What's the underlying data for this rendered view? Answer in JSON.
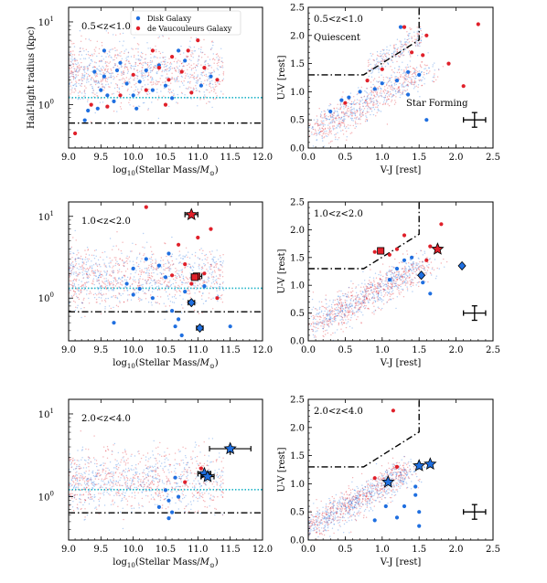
{
  "figure": {
    "legend": {
      "entries": [
        {
          "label": "Disk Galaxy",
          "color": "#1f6fe0"
        },
        {
          "label": "de Vaucouleurs Galaxy",
          "color": "#e0202a"
        }
      ],
      "placement": "top-center of first panel"
    },
    "colors": {
      "disk": "#1f6fe0",
      "devauc": "#e0202a",
      "dotted_line": "#22b5c8",
      "dashdot_line": "#000000"
    }
  },
  "chart_data": [
    {
      "id": "mass-size-1",
      "type": "scatter",
      "row": 0,
      "col": 0,
      "annotation": "0.5<z<1.0",
      "xlabel": "log10(Stellar Mass/M⊙)",
      "ylabel": "Half-light radius (kpc)",
      "yscale": "log",
      "xlim": [
        9.0,
        12.0
      ],
      "ylim": [
        0.3,
        15
      ],
      "xticks": [
        "9.0",
        "9.5",
        "10.0",
        "10.5",
        "11.0",
        "11.5",
        "12.0"
      ],
      "yticks": [
        {
          "v": 1,
          "label": "10^0"
        },
        {
          "v": 10,
          "label": "10^1"
        }
      ],
      "background_points": {
        "x_range": [
          9.0,
          11.5
        ],
        "description": "dense field of faint blue/red points"
      },
      "series": [
        {
          "name": "Disk Galaxy",
          "points": [
            [
              9.25,
              0.65
            ],
            [
              9.3,
              0.85
            ],
            [
              9.4,
              2.5
            ],
            [
              9.45,
              0.9
            ],
            [
              9.5,
              1.5
            ],
            [
              9.55,
              2.2
            ],
            [
              9.6,
              1.3
            ],
            [
              9.7,
              1.1
            ],
            [
              9.75,
              2.6
            ],
            [
              9.8,
              3.2
            ],
            [
              9.9,
              1.8
            ],
            [
              10.0,
              1.3
            ],
            [
              10.05,
              0.9
            ],
            [
              10.1,
              1.9
            ],
            [
              10.2,
              2.6
            ],
            [
              10.3,
              1.5
            ],
            [
              10.4,
              3.0
            ],
            [
              10.5,
              1.7
            ],
            [
              10.6,
              1.2
            ],
            [
              10.7,
              4.5
            ],
            [
              10.8,
              3.4
            ],
            [
              11.05,
              1.7
            ],
            [
              11.2,
              2.2
            ],
            [
              9.55,
              4.5
            ]
          ]
        },
        {
          "name": "de Vaucouleurs Galaxy",
          "points": [
            [
              9.1,
              0.45
            ],
            [
              9.35,
              1.0
            ],
            [
              9.6,
              0.95
            ],
            [
              9.8,
              1.3
            ],
            [
              10.0,
              2.3
            ],
            [
              10.2,
              1.5
            ],
            [
              10.4,
              2.8
            ],
            [
              10.5,
              1.0
            ],
            [
              10.55,
              2.0
            ],
            [
              10.6,
              3.8
            ],
            [
              10.75,
              2.5
            ],
            [
              10.85,
              4.5
            ],
            [
              10.9,
              1.4
            ],
            [
              11.0,
              6.0
            ],
            [
              11.1,
              2.8
            ],
            [
              11.3,
              2.0
            ],
            [
              10.3,
              4.5
            ]
          ]
        }
      ],
      "hlines": [
        {
          "y": 1.22,
          "style": "dotted",
          "color": "#22b5c8"
        },
        {
          "y": 0.6,
          "style": "dashdot",
          "color": "#000000"
        }
      ]
    },
    {
      "id": "uvj-1",
      "type": "scatter",
      "row": 0,
      "col": 1,
      "annotation": "0.5<z<1.0",
      "region_labels": [
        "Quiescent",
        "Star Forming"
      ],
      "xlabel": "V-J [rest]",
      "ylabel": "U-V [rest]",
      "xlim": [
        0.0,
        2.5
      ],
      "ylim": [
        0.0,
        2.5
      ],
      "xticks": [
        "0.0",
        "0.5",
        "1.0",
        "1.5",
        "2.0",
        "2.5"
      ],
      "yticks": [
        "0.0",
        "0.5",
        "1.0",
        "1.5",
        "2.0",
        "2.5"
      ],
      "background_points": {
        "description": "dense diagonal band of faint points"
      },
      "series": [
        {
          "name": "Disk Galaxy",
          "points": [
            [
              0.3,
              0.65
            ],
            [
              0.45,
              0.85
            ],
            [
              0.55,
              0.9
            ],
            [
              0.7,
              1.0
            ],
            [
              0.9,
              1.05
            ],
            [
              1.0,
              1.15
            ],
            [
              1.2,
              1.2
            ],
            [
              1.35,
              1.35
            ],
            [
              1.5,
              1.3
            ],
            [
              1.25,
              2.15
            ],
            [
              1.6,
              0.5
            ],
            [
              1.35,
              0.95
            ]
          ]
        },
        {
          "name": "de Vaucouleurs Galaxy",
          "points": [
            [
              0.5,
              0.8
            ],
            [
              0.8,
              1.2
            ],
            [
              1.0,
              1.4
            ],
            [
              1.3,
              2.15
            ],
            [
              1.55,
              1.65
            ],
            [
              1.6,
              2.0
            ],
            [
              1.9,
              1.5
            ],
            [
              2.1,
              1.1
            ],
            [
              2.3,
              2.2
            ],
            [
              1.4,
              1.7
            ]
          ]
        }
      ],
      "boundary": [
        [
          0.0,
          1.3
        ],
        [
          0.75,
          1.3
        ],
        [
          1.5,
          1.92
        ],
        [
          1.5,
          2.5
        ]
      ],
      "error_bar": {
        "x": 2.25,
        "y": 0.5,
        "dx": 0.15,
        "dy": 0.13
      }
    },
    {
      "id": "mass-size-2",
      "type": "scatter",
      "row": 1,
      "col": 0,
      "annotation": "1.0<z<2.0",
      "xlabel": "log10(Stellar Mass/M⊙)",
      "ylabel": "",
      "yscale": "log",
      "xlim": [
        9.0,
        12.0
      ],
      "ylim": [
        0.3,
        15
      ],
      "xticks": [
        "9.0",
        "9.5",
        "10.0",
        "10.5",
        "11.0",
        "11.5",
        "12.0"
      ],
      "yticks": [
        {
          "v": 1,
          "label": "10^0"
        },
        {
          "v": 10,
          "label": "10^1"
        }
      ],
      "series": [
        {
          "name": "Disk Galaxy",
          "points": [
            [
              9.7,
              0.5
            ],
            [
              9.9,
              1.5
            ],
            [
              10.0,
              2.3
            ],
            [
              10.1,
              1.3
            ],
            [
              10.2,
              3.0
            ],
            [
              10.3,
              1.0
            ],
            [
              10.4,
              2.5
            ],
            [
              10.5,
              1.8
            ],
            [
              10.6,
              0.7
            ],
            [
              10.65,
              0.45
            ],
            [
              10.7,
              0.55
            ],
            [
              10.75,
              0.35
            ],
            [
              10.8,
              1.2
            ],
            [
              11.1,
              1.4
            ],
            [
              11.5,
              0.45
            ],
            [
              10.55,
              3.5
            ],
            [
              10.0,
              1.1
            ]
          ]
        },
        {
          "name": "de Vaucouleurs Galaxy",
          "points": [
            [
              10.2,
              13.0
            ],
            [
              10.6,
              1.9
            ],
            [
              10.7,
              4.5
            ],
            [
              10.8,
              2.6
            ],
            [
              11.0,
              5.5
            ],
            [
              11.1,
              2.0
            ],
            [
              11.2,
              7.0
            ],
            [
              11.3,
              1.0
            ],
            [
              10.9,
              1.5
            ]
          ]
        }
      ],
      "highlighted": [
        {
          "marker": "star",
          "color": "#e0202a",
          "x": 10.9,
          "y": 10.5,
          "xerr": 0.1
        },
        {
          "marker": "square",
          "color": "#e0202a",
          "x": 10.98,
          "y": 1.85,
          "xerr": 0.08
        },
        {
          "marker": "square",
          "color": "#e0202a",
          "x": 10.95,
          "y": 1.8
        },
        {
          "marker": "diamond",
          "color": "#1f6fe0",
          "x": 10.9,
          "y": 0.88,
          "xerr": 0.05
        },
        {
          "marker": "diamond",
          "color": "#1f6fe0",
          "x": 11.03,
          "y": 0.43,
          "xerr": 0.05
        }
      ],
      "hlines": [
        {
          "y": 1.32,
          "style": "dotted",
          "color": "#22b5c8"
        },
        {
          "y": 0.68,
          "style": "dashdot",
          "color": "#000000"
        }
      ]
    },
    {
      "id": "uvj-2",
      "type": "scatter",
      "row": 1,
      "col": 1,
      "annotation": "1.0<z<2.0",
      "xlabel": "V-J [rest]",
      "ylabel": "U-V [rest]",
      "xlim": [
        0.0,
        2.5
      ],
      "ylim": [
        0.0,
        2.5
      ],
      "xticks": [
        "0.0",
        "0.5",
        "1.0",
        "1.5",
        "2.0",
        "2.5"
      ],
      "yticks": [
        "0.0",
        "0.5",
        "1.0",
        "1.5",
        "2.0",
        "2.5"
      ],
      "series": [
        {
          "name": "Disk Galaxy",
          "points": [
            [
              1.2,
              1.3
            ],
            [
              1.4,
              1.5
            ],
            [
              1.55,
              1.05
            ],
            [
              1.65,
              0.85
            ],
            [
              1.3,
              1.45
            ],
            [
              1.1,
              1.1
            ]
          ]
        },
        {
          "name": "de Vaucouleurs Galaxy",
          "points": [
            [
              0.9,
              1.6
            ],
            [
              1.2,
              1.65
            ],
            [
              1.3,
              1.9
            ],
            [
              1.6,
              1.45
            ],
            [
              1.65,
              1.7
            ],
            [
              1.8,
              2.1
            ],
            [
              1.1,
              1.55
            ]
          ]
        }
      ],
      "highlighted": [
        {
          "marker": "square",
          "color": "#e0202a",
          "x": 0.98,
          "y": 1.62
        },
        {
          "marker": "star",
          "color": "#e0202a",
          "x": 1.75,
          "y": 1.65
        },
        {
          "marker": "diamond",
          "color": "#1f6fe0",
          "x": 1.53,
          "y": 1.18
        },
        {
          "marker": "diamond",
          "color": "#1f6fe0",
          "x": 2.08,
          "y": 1.35
        }
      ],
      "boundary": [
        [
          0.0,
          1.3
        ],
        [
          0.75,
          1.3
        ],
        [
          1.5,
          1.92
        ],
        [
          1.5,
          2.5
        ]
      ],
      "error_bar": {
        "x": 2.25,
        "y": 0.5,
        "dx": 0.15,
        "dy": 0.13
      }
    },
    {
      "id": "mass-size-3",
      "type": "scatter",
      "row": 2,
      "col": 0,
      "annotation": "2.0<z<4.0",
      "xlabel": "log10(Stellar Mass/M⊙)",
      "ylabel": "",
      "yscale": "log",
      "xlim": [
        9.0,
        12.0
      ],
      "ylim": [
        0.3,
        15
      ],
      "xticks": [
        "9.0",
        "9.5",
        "10.0",
        "10.5",
        "11.0",
        "11.5",
        "12.0"
      ],
      "yticks": [
        {
          "v": 1,
          "label": "10^0"
        },
        {
          "v": 10,
          "label": "10^1"
        }
      ],
      "series": [
        {
          "name": "Disk Galaxy",
          "points": [
            [
              10.5,
              1.2
            ],
            [
              10.55,
              0.9
            ],
            [
              10.6,
              0.65
            ],
            [
              10.55,
              0.55
            ],
            [
              10.7,
              1.0
            ],
            [
              10.65,
              1.7
            ],
            [
              10.4,
              0.75
            ]
          ]
        },
        {
          "name": "de Vaucouleurs Galaxy",
          "points": [
            [
              11.05,
              2.2
            ],
            [
              10.8,
              1.5
            ]
          ]
        }
      ],
      "highlighted": [
        {
          "marker": "star",
          "color": "#1f6fe0",
          "x": 11.5,
          "y": 3.8,
          "xerr": 0.32,
          "yerr": [
            0.6,
            0.6
          ]
        },
        {
          "marker": "star",
          "color": "#1f6fe0",
          "x": 11.1,
          "y": 1.9,
          "xerr": 0.1
        },
        {
          "marker": "star",
          "color": "#1f6fe0",
          "x": 11.15,
          "y": 1.75,
          "xerr": 0.1
        }
      ],
      "hlines": [
        {
          "y": 1.22,
          "style": "dotted",
          "color": "#22b5c8"
        },
        {
          "y": 0.64,
          "style": "dashdot",
          "color": "#000000"
        }
      ]
    },
    {
      "id": "uvj-3",
      "type": "scatter",
      "row": 2,
      "col": 1,
      "annotation": "2.0<z<4.0",
      "xlabel": "V-J [rest]",
      "ylabel": "U-V [rest]",
      "xlim": [
        0.0,
        2.5
      ],
      "ylim": [
        0.0,
        2.5
      ],
      "xticks": [
        "0.0",
        "0.5",
        "1.0",
        "1.5",
        "2.0",
        "2.5"
      ],
      "yticks": [
        "0.0",
        "0.5",
        "1.0",
        "1.5",
        "2.0",
        "2.5"
      ],
      "series": [
        {
          "name": "Disk Galaxy",
          "points": [
            [
              1.45,
              0.95
            ],
            [
              1.45,
              0.8
            ],
            [
              1.5,
              0.5
            ],
            [
              1.5,
              0.25
            ],
            [
              1.3,
              0.6
            ],
            [
              0.9,
              0.35
            ],
            [
              1.05,
              0.6
            ],
            [
              1.2,
              0.4
            ]
          ]
        },
        {
          "name": "de Vaucouleurs Galaxy",
          "points": [
            [
              1.15,
              2.3
            ],
            [
              0.9,
              1.1
            ],
            [
              1.2,
              1.3
            ]
          ]
        }
      ],
      "highlighted": [
        {
          "marker": "star",
          "color": "#1f6fe0",
          "x": 1.08,
          "y": 1.03
        },
        {
          "marker": "star",
          "color": "#1f6fe0",
          "x": 1.5,
          "y": 1.32
        },
        {
          "marker": "star",
          "color": "#1f6fe0",
          "x": 1.65,
          "y": 1.35
        }
      ],
      "boundary": [
        [
          0.0,
          1.3
        ],
        [
          0.75,
          1.3
        ],
        [
          1.5,
          1.92
        ],
        [
          1.5,
          2.5
        ]
      ],
      "error_bar": {
        "x": 2.25,
        "y": 0.5,
        "dx": 0.15,
        "dy": 0.13
      }
    }
  ]
}
